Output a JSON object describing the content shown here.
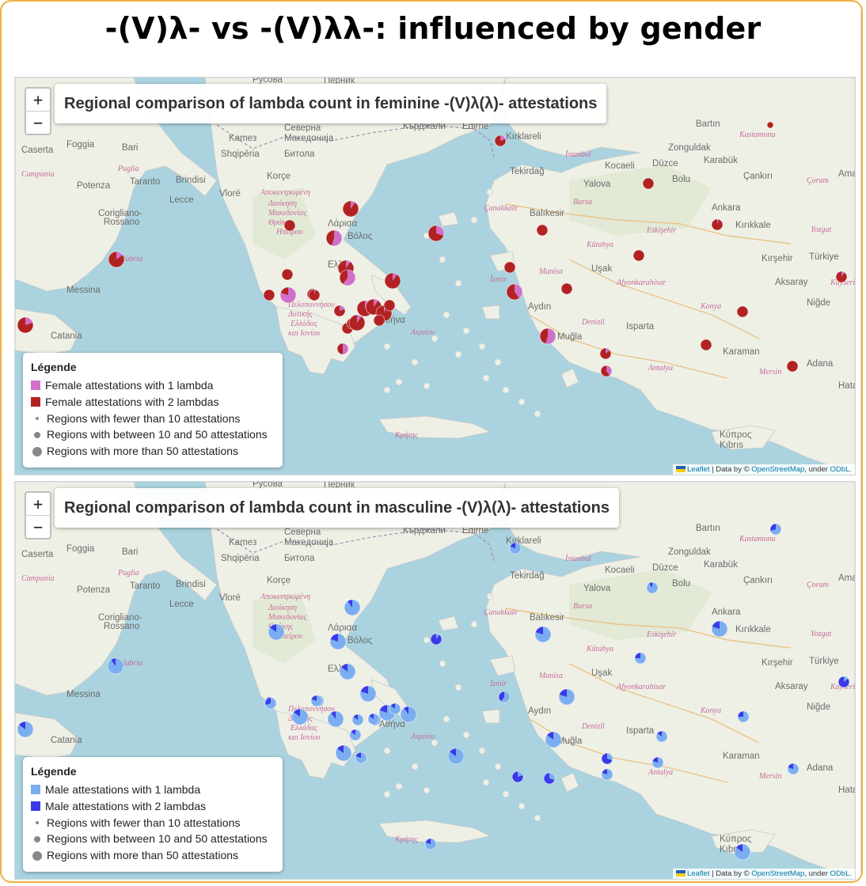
{
  "page": {
    "title": "-(V)λ- vs -(V)λλ-: influenced by gender"
  },
  "colors": {
    "sea": "#aad3df",
    "land": "#eef0e6",
    "female_one": "#d070c8",
    "female_two": "#b22222",
    "male_one": "#5a8fe6",
    "male_two": "#3a3ae8",
    "male_light": "#a9c6f0"
  },
  "zoom_control": {
    "in_label": "+",
    "out_label": "−"
  },
  "attribution": {
    "leaflet": "Leaflet",
    "separator": " | Data by © ",
    "osm": "OpenStreetMap",
    "under": ", under ",
    "license": "ODbL."
  },
  "place_labels": [
    {
      "text": "Caserta",
      "style": "normal"
    },
    {
      "text": "Foggia",
      "style": "normal"
    },
    {
      "text": "Bari",
      "style": "normal"
    },
    {
      "text": "Campania",
      "style": "it"
    },
    {
      "text": "Puglia",
      "style": "it"
    },
    {
      "text": "Potenza",
      "style": "normal"
    },
    {
      "text": "Taranto",
      "style": "normal"
    },
    {
      "text": "Brindisi",
      "style": "normal"
    },
    {
      "text": "Lecce",
      "style": "normal"
    },
    {
      "text": "Corigliano-",
      "style": "normal"
    },
    {
      "text": "Rossano",
      "style": "normal"
    },
    {
      "text": "Calabria",
      "style": "it"
    },
    {
      "text": "Messina",
      "style": "normal"
    },
    {
      "text": "Catania",
      "style": "normal"
    },
    {
      "text": "Kameз",
      "style": "normal"
    },
    {
      "text": "Северна",
      "style": "normal"
    },
    {
      "text": "Македонија",
      "style": "normal"
    },
    {
      "text": "Shqipëria",
      "style": "normal"
    },
    {
      "text": "Битола",
      "style": "normal"
    },
    {
      "text": "Korçe",
      "style": "normal"
    },
    {
      "text": "Vlorë",
      "style": "normal"
    },
    {
      "text": "Αποκεντρωμένη",
      "style": "it"
    },
    {
      "text": "Διοίκηση",
      "style": "it"
    },
    {
      "text": "Μακεδονίας",
      "style": "it"
    },
    {
      "text": "Θράκης",
      "style": "it"
    },
    {
      "text": "Ηπείρου",
      "style": "it"
    },
    {
      "text": "Λάρισα",
      "style": "normal"
    },
    {
      "text": "Βόλος",
      "style": "normal"
    },
    {
      "text": "Ελλάς",
      "style": "normal"
    },
    {
      "text": "Πελοποννήσου",
      "style": "it"
    },
    {
      "text": "Δυτικής",
      "style": "it"
    },
    {
      "text": "Ελλάδας",
      "style": "it"
    },
    {
      "text": "και Ιονίου",
      "style": "it"
    },
    {
      "text": "Αθήνα",
      "style": "normal"
    },
    {
      "text": "Αιγαίου",
      "style": "it"
    },
    {
      "text": "Κρήτης",
      "style": "it"
    },
    {
      "text": "Кърджали",
      "style": "normal"
    },
    {
      "text": "Edirne",
      "style": "normal"
    },
    {
      "text": "Kırklareli",
      "style": "normal"
    },
    {
      "text": "İstanbul",
      "style": "it"
    },
    {
      "text": "Tekirdağ",
      "style": "normal"
    },
    {
      "text": "Kocaeli",
      "style": "normal"
    },
    {
      "text": "Düzce",
      "style": "normal"
    },
    {
      "text": "Yalova",
      "style": "normal"
    },
    {
      "text": "Bolu",
      "style": "normal"
    },
    {
      "text": "Bursa",
      "style": "it"
    },
    {
      "text": "Çanakkale",
      "style": "it"
    },
    {
      "text": "Balıkesir",
      "style": "normal"
    },
    {
      "text": "Kütahya",
      "style": "it"
    },
    {
      "text": "Eskişehir",
      "style": "it"
    },
    {
      "text": "Ankara",
      "style": "normal"
    },
    {
      "text": "Kırıkkale",
      "style": "normal"
    },
    {
      "text": "Yozgat",
      "style": "it"
    },
    {
      "text": "Bartın",
      "style": "normal"
    },
    {
      "text": "Kastamonu",
      "style": "it"
    },
    {
      "text": "Zonguldak",
      "style": "normal"
    },
    {
      "text": "Karabük",
      "style": "normal"
    },
    {
      "text": "Çankırı",
      "style": "normal"
    },
    {
      "text": "Çorum",
      "style": "it"
    },
    {
      "text": "Amasya",
      "style": "normal"
    },
    {
      "text": "İzmir",
      "style": "it"
    },
    {
      "text": "Manisa",
      "style": "it"
    },
    {
      "text": "Uşak",
      "style": "normal"
    },
    {
      "text": "Afyonkarahisar",
      "style": "it"
    },
    {
      "text": "Kırşehir",
      "style": "normal"
    },
    {
      "text": "Türkiye",
      "style": "normal"
    },
    {
      "text": "Aksaray",
      "style": "normal"
    },
    {
      "text": "Niğde",
      "style": "normal"
    },
    {
      "text": "Kayseri",
      "style": "it"
    },
    {
      "text": "Konya",
      "style": "it"
    },
    {
      "text": "Aydın",
      "style": "normal"
    },
    {
      "text": "Denizli",
      "style": "it"
    },
    {
      "text": "Isparta",
      "style": "normal"
    },
    {
      "text": "Muğla",
      "style": "normal"
    },
    {
      "text": "Antalya",
      "style": "it"
    },
    {
      "text": "Karaman",
      "style": "normal"
    },
    {
      "text": "Mersin",
      "style": "it"
    },
    {
      "text": "Adana",
      "style": "normal"
    },
    {
      "text": "Κύπρος",
      "style": "normal"
    },
    {
      "text": "Kıbrıs",
      "style": "normal"
    },
    {
      "text": "Hatay",
      "style": "normal"
    },
    {
      "text": "Русова",
      "style": "normal"
    },
    {
      "text": "Перник",
      "style": "normal"
    }
  ],
  "maps": [
    {
      "id": "feminine",
      "title": "Regional comparison of lambda count in feminine -(V)λ(λ)- attestations",
      "legend": {
        "title": "Légende",
        "entries": [
          {
            "label": "Female attestations with 1 lambda",
            "color": "#d070c8"
          },
          {
            "label": "Female attestations with 2 lambdas",
            "color": "#b22222"
          }
        ],
        "size_entries": [
          {
            "label": "Regions with fewer than 10 attestations",
            "size": "small"
          },
          {
            "label": "Regions with between 10 and 50 attestations",
            "size": "medium"
          },
          {
            "label": "Regions with more than 50 attestations",
            "size": "large"
          }
        ]
      },
      "markers": [
        {
          "r": "medium",
          "share_one": 0.2
        },
        {
          "r": "small",
          "share_one": 0.0
        },
        {
          "r": "medium",
          "share_one": 0.15
        },
        {
          "r": "small",
          "share_one": 0.0
        },
        {
          "r": "medium",
          "share_one": 0.55
        },
        {
          "r": "medium",
          "share_one": 0.1
        },
        {
          "r": "medium",
          "share_one": 0.3
        },
        {
          "r": "medium",
          "share_one": 0.1
        },
        {
          "r": "small",
          "share_one": 0.0
        },
        {
          "r": "medium",
          "share_one": 0.15
        },
        {
          "r": "small",
          "share_one": 0.05
        },
        {
          "r": "medium",
          "share_one": 0.8
        },
        {
          "r": "small",
          "share_one": 0.5
        },
        {
          "r": "medium",
          "share_one": 0.6
        },
        {
          "r": "medium",
          "share_one": 0.1
        },
        {
          "r": "small",
          "share_one": 0.0
        },
        {
          "r": "small",
          "share_one": 0.0
        },
        {
          "r": "small",
          "share_one": 0.2
        },
        {
          "r": "medium",
          "share_one": 0.1
        },
        {
          "r": "small",
          "share_one": 0.0
        },
        {
          "r": "medium",
          "share_one": 0.05
        },
        {
          "r": "small",
          "share_one": 0.0
        },
        {
          "r": "medium",
          "share_one": 0.1
        },
        {
          "r": "small",
          "share_one": 0.0
        },
        {
          "r": "medium",
          "share_one": 0.05
        },
        {
          "r": "small",
          "share_one": 0.7
        },
        {
          "r": "medium",
          "share_one": 0.4
        },
        {
          "r": "small",
          "share_one": 0.2
        },
        {
          "r": "small",
          "share_one": 0.0
        },
        {
          "r": "medium",
          "share_one": 0.55
        },
        {
          "r": "small",
          "share_one": 0.0
        },
        {
          "r": "small",
          "share_one": 0.0
        },
        {
          "r": "small",
          "share_one": 0.0
        },
        {
          "r": "small",
          "share_one": 0.0
        },
        {
          "r": "tiny",
          "share_one": 0.0
        },
        {
          "r": "small",
          "share_one": 0.0
        },
        {
          "r": "small",
          "share_one": 0.05
        },
        {
          "r": "small",
          "share_one": 0.0
        },
        {
          "r": "small",
          "share_one": 0.1
        },
        {
          "r": "small",
          "share_one": 0.15
        },
        {
          "r": "small",
          "share_one": 0.4
        },
        {
          "r": "small",
          "share_one": 0.0
        }
      ]
    },
    {
      "id": "masculine",
      "title": "Regional comparison of lambda count in masculine -(V)λ(λ)- attestations",
      "legend": {
        "title": "Légende",
        "entries": [
          {
            "label": "Male attestations with 1 lambda",
            "color": "#5a8fe6"
          },
          {
            "label": "Male attestations with 2 lambdas",
            "color": "#3a3ae8"
          }
        ],
        "size_entries": [
          {
            "label": "Regions with fewer than 10 attestations",
            "size": "small"
          },
          {
            "label": "Regions with between 10 and 50 attestations",
            "size": "medium"
          },
          {
            "label": "Regions with more than 50 attestations",
            "size": "large"
          }
        ]
      },
      "markers": [
        {
          "r": "medium",
          "share_one": 0.85
        },
        {
          "r": "medium",
          "share_one": 0.9
        },
        {
          "r": "medium",
          "share_one": 0.85
        },
        {
          "r": "medium",
          "share_one": 0.9
        },
        {
          "r": "medium",
          "share_one": 0.8
        },
        {
          "r": "small",
          "share_one": 0.1
        },
        {
          "r": "medium",
          "share_one": 0.85
        },
        {
          "r": "medium",
          "share_one": 0.8
        },
        {
          "r": "small",
          "share_one": 0.9
        },
        {
          "r": "small",
          "share_one": 0.8
        },
        {
          "r": "medium",
          "share_one": 0.85
        },
        {
          "r": "medium",
          "share_one": 0.9
        },
        {
          "r": "small",
          "share_one": 0.85
        },
        {
          "r": "medium",
          "share_one": 0.8
        },
        {
          "r": "small",
          "share_one": 0.85
        },
        {
          "r": "small",
          "share_one": 0.5
        },
        {
          "r": "small",
          "share_one": 0.85
        },
        {
          "r": "medium",
          "share_one": 0.9
        },
        {
          "r": "medium",
          "share_one": 0.85
        },
        {
          "r": "small",
          "share_one": 0.8
        },
        {
          "r": "medium",
          "share_one": 0.8
        },
        {
          "r": "small",
          "share_one": 0.6
        },
        {
          "r": "medium",
          "share_one": 0.85
        },
        {
          "r": "medium",
          "share_one": 0.8
        },
        {
          "r": "small",
          "share_one": 0.75
        },
        {
          "r": "small",
          "share_one": 0.9
        },
        {
          "r": "medium",
          "share_one": 0.8
        },
        {
          "r": "small",
          "share_one": 0.7
        },
        {
          "r": "small",
          "share_one": 0.75
        },
        {
          "r": "small",
          "share_one": 0.15
        },
        {
          "r": "small",
          "share_one": 0.85
        },
        {
          "r": "small",
          "share_one": 0.8
        },
        {
          "r": "small",
          "share_one": 0.3
        },
        {
          "r": "small",
          "share_one": 0.8
        },
        {
          "r": "small",
          "share_one": 0.3
        },
        {
          "r": "medium",
          "share_one": 0.85
        },
        {
          "r": "small",
          "share_one": 0.8
        },
        {
          "r": "small",
          "share_one": 0.2
        },
        {
          "r": "small",
          "share_one": 0.8
        },
        {
          "r": "medium",
          "share_one": 0.85
        },
        {
          "r": "small",
          "share_one": 0.8
        },
        {
          "r": "small",
          "share_one": 0.7
        },
        {
          "r": "small",
          "share_one": 0.8
        },
        {
          "r": "small",
          "share_one": 0.85
        }
      ]
    }
  ]
}
